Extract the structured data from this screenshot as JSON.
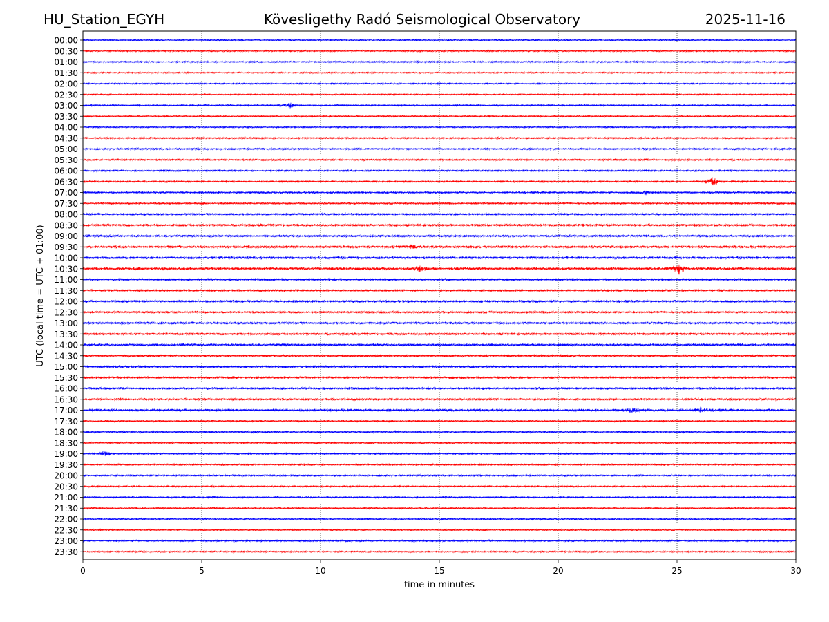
{
  "header": {
    "station": "HU_Station_EGYH",
    "title": "Kövesligethy Radó Seismological Observatory",
    "date": "2025-11-16"
  },
  "chart_data": {
    "type": "line",
    "title": "Kövesligethy Radó Seismological Observatory",
    "xlabel": "time in minutes",
    "ylabel": "UTC (local time = UTC + 01:00)",
    "xlim": [
      0,
      30
    ],
    "x_ticks": [
      0,
      5,
      10,
      15,
      20,
      25,
      30
    ],
    "x_tick_labels": [
      "0",
      "5",
      "10",
      "15",
      "20",
      "25",
      "30"
    ],
    "x_grid": "vertical dotted lines at 5, 10, 15, 20, 25",
    "colors": {
      "odd_rows": "#0000ff",
      "even_rows": "#ff0000",
      "frame": "#000000",
      "grid": "#000000"
    },
    "rows": [
      "00:00",
      "00:30",
      "01:00",
      "01:30",
      "02:00",
      "02:30",
      "03:00",
      "03:30",
      "04:00",
      "04:30",
      "05:00",
      "05:30",
      "06:00",
      "06:30",
      "07:00",
      "07:30",
      "08:00",
      "08:30",
      "09:00",
      "09:30",
      "10:00",
      "10:30",
      "11:00",
      "11:30",
      "12:00",
      "12:30",
      "13:00",
      "13:30",
      "14:00",
      "14:30",
      "15:00",
      "15:30",
      "16:00",
      "16:30",
      "17:00",
      "17:30",
      "18:00",
      "18:30",
      "19:00",
      "19:30",
      "20:00",
      "20:30",
      "21:00",
      "21:30",
      "22:00",
      "22:30",
      "23:00",
      "23:30"
    ],
    "noise_level": [
      1.0,
      1.0,
      1.0,
      0.9,
      0.9,
      0.9,
      1.1,
      1.0,
      1.0,
      1.0,
      1.1,
      1.1,
      1.1,
      1.2,
      1.3,
      1.2,
      1.4,
      1.6,
      1.5,
      1.7,
      1.8,
      1.8,
      1.5,
      1.4,
      1.6,
      1.4,
      1.5,
      1.5,
      1.7,
      1.4,
      1.6,
      1.5,
      1.5,
      1.4,
      1.7,
      1.2,
      1.2,
      1.1,
      1.2,
      1.1,
      1.1,
      1.0,
      1.1,
      1.0,
      1.1,
      1.0,
      1.1,
      1.0
    ],
    "events": [
      {
        "row": "03:00",
        "minute": 8.7,
        "amplitude": 4
      },
      {
        "row": "06:30",
        "minute": 26.5,
        "amplitude": 7
      },
      {
        "row": "07:00",
        "minute": 23.7,
        "amplitude": 3
      },
      {
        "row": "09:30",
        "minute": 13.8,
        "amplitude": 3
      },
      {
        "row": "10:30",
        "minute": 14.2,
        "amplitude": 4
      },
      {
        "row": "10:30",
        "minute": 25.1,
        "amplitude": 8
      },
      {
        "row": "17:00",
        "minute": 23.2,
        "amplitude": 4
      },
      {
        "row": "17:00",
        "minute": 26.0,
        "amplitude": 3
      },
      {
        "row": "19:00",
        "minute": 0.9,
        "amplitude": 4
      }
    ]
  }
}
